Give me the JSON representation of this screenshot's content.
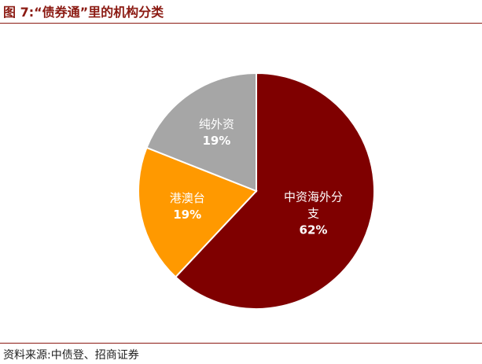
{
  "header": {
    "title": "图 7:“债券通”里的机构分类"
  },
  "footer": {
    "source": "资料来源:中债登、招商证券"
  },
  "chart_data": {
    "type": "pie",
    "title": "图 7:“债券通”里的机构分类",
    "legend": "none",
    "start_angle_deg": 0,
    "direction": "clockwise",
    "slices": [
      {
        "label": "中资海外分\n支",
        "value": 62,
        "display": "62%",
        "color": "#7f0000"
      },
      {
        "label": "港澳台",
        "value": 19,
        "display": "19%",
        "color": "#ff9900"
      },
      {
        "label": "纯外资",
        "value": 19,
        "display": "19%",
        "color": "#a6a6a6"
      }
    ]
  }
}
